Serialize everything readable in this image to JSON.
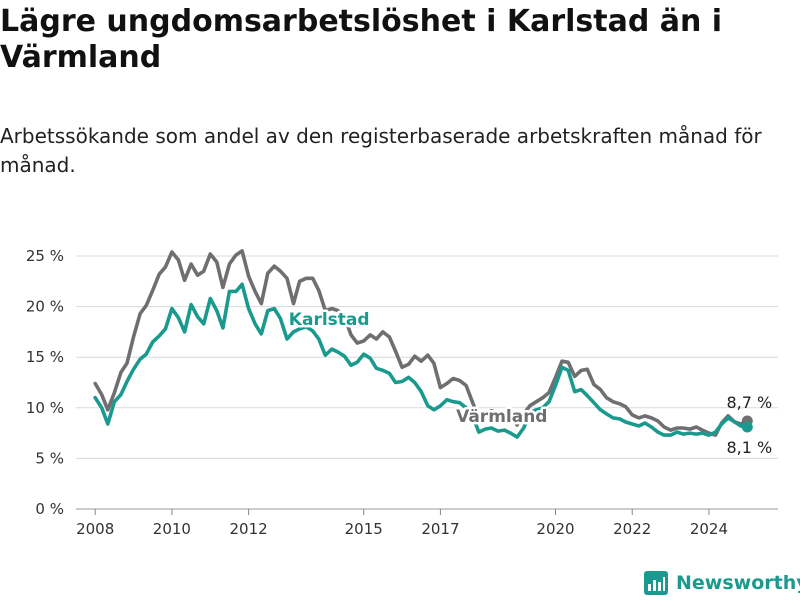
{
  "title": "Lägre ungdomsarbetslöshet i Karlstad än i Värmland",
  "subtitle": "Arbetssökande som andel av den registerbaserade arbetskraften månad för månad.",
  "brand": "Newsworthy",
  "colors": {
    "karlstad": "#1a9a8e",
    "varmland": "#6f6f72",
    "grid": "#d9d9d9"
  },
  "chart_data": {
    "type": "line",
    "ylim": [
      0,
      25
    ],
    "xlim": [
      2007.5,
      2025.8
    ],
    "yticks": [
      "0 %",
      "5 %",
      "10 %",
      "15 %",
      "20 %",
      "25 %"
    ],
    "xticks": [
      "2008",
      "2010",
      "2012",
      "2015",
      "2017",
      "2020",
      "2022",
      "2024"
    ],
    "grid": true,
    "series": [
      {
        "name": "Värmland",
        "end_label": "8,7 %",
        "points": [
          [
            2008.0,
            12.4
          ],
          [
            2008.17,
            11.3
          ],
          [
            2008.33,
            9.8
          ],
          [
            2008.5,
            11.5
          ],
          [
            2008.67,
            13.5
          ],
          [
            2008.83,
            14.4
          ],
          [
            2009.0,
            17.0
          ],
          [
            2009.17,
            19.3
          ],
          [
            2009.33,
            20.1
          ],
          [
            2009.5,
            21.6
          ],
          [
            2009.67,
            23.2
          ],
          [
            2009.83,
            23.9
          ],
          [
            2010.0,
            25.4
          ],
          [
            2010.17,
            24.6
          ],
          [
            2010.33,
            22.6
          ],
          [
            2010.5,
            24.2
          ],
          [
            2010.67,
            23.1
          ],
          [
            2010.83,
            23.5
          ],
          [
            2011.0,
            25.2
          ],
          [
            2011.17,
            24.4
          ],
          [
            2011.33,
            21.9
          ],
          [
            2011.5,
            24.2
          ],
          [
            2011.67,
            25.1
          ],
          [
            2011.83,
            25.5
          ],
          [
            2012.0,
            23.0
          ],
          [
            2012.17,
            21.5
          ],
          [
            2012.33,
            20.3
          ],
          [
            2012.5,
            23.3
          ],
          [
            2012.67,
            24.0
          ],
          [
            2012.83,
            23.5
          ],
          [
            2013.0,
            22.8
          ],
          [
            2013.17,
            20.3
          ],
          [
            2013.33,
            22.5
          ],
          [
            2013.5,
            22.8
          ],
          [
            2013.67,
            22.8
          ],
          [
            2013.83,
            21.6
          ],
          [
            2014.0,
            19.6
          ],
          [
            2014.17,
            19.8
          ],
          [
            2014.33,
            19.6
          ],
          [
            2014.5,
            19.0
          ],
          [
            2014.67,
            17.2
          ],
          [
            2014.83,
            16.4
          ],
          [
            2015.0,
            16.6
          ],
          [
            2015.17,
            17.2
          ],
          [
            2015.33,
            16.8
          ],
          [
            2015.5,
            17.5
          ],
          [
            2015.67,
            17.0
          ],
          [
            2015.83,
            15.6
          ],
          [
            2016.0,
            14.0
          ],
          [
            2016.17,
            14.3
          ],
          [
            2016.33,
            15.1
          ],
          [
            2016.5,
            14.6
          ],
          [
            2016.67,
            15.2
          ],
          [
            2016.83,
            14.4
          ],
          [
            2017.0,
            12.0
          ],
          [
            2017.17,
            12.4
          ],
          [
            2017.33,
            12.9
          ],
          [
            2017.5,
            12.7
          ],
          [
            2017.67,
            12.2
          ],
          [
            2017.83,
            10.6
          ],
          [
            2018.0,
            9.0
          ],
          [
            2018.17,
            9.4
          ],
          [
            2018.33,
            9.7
          ],
          [
            2018.5,
            9.4
          ],
          [
            2018.67,
            9.1
          ],
          [
            2018.83,
            9.3
          ],
          [
            2019.0,
            8.3
          ],
          [
            2019.17,
            9.4
          ],
          [
            2019.33,
            10.2
          ],
          [
            2019.5,
            10.6
          ],
          [
            2019.67,
            11.0
          ],
          [
            2019.83,
            11.5
          ],
          [
            2020.0,
            13.0
          ],
          [
            2020.17,
            14.6
          ],
          [
            2020.33,
            14.5
          ],
          [
            2020.5,
            13.1
          ],
          [
            2020.67,
            13.7
          ],
          [
            2020.83,
            13.8
          ],
          [
            2021.0,
            12.3
          ],
          [
            2021.17,
            11.8
          ],
          [
            2021.33,
            11.0
          ],
          [
            2021.5,
            10.6
          ],
          [
            2021.67,
            10.4
          ],
          [
            2021.83,
            10.1
          ],
          [
            2022.0,
            9.3
          ],
          [
            2022.17,
            9.0
          ],
          [
            2022.33,
            9.2
          ],
          [
            2022.5,
            9.0
          ],
          [
            2022.67,
            8.7
          ],
          [
            2022.83,
            8.1
          ],
          [
            2023.0,
            7.8
          ],
          [
            2023.17,
            8.0
          ],
          [
            2023.33,
            8.0
          ],
          [
            2023.5,
            7.9
          ],
          [
            2023.67,
            8.1
          ],
          [
            2023.83,
            7.8
          ],
          [
            2024.0,
            7.5
          ],
          [
            2024.17,
            7.3
          ],
          [
            2024.33,
            8.5
          ],
          [
            2024.5,
            9.2
          ],
          [
            2024.67,
            8.6
          ],
          [
            2024.83,
            8.4
          ],
          [
            2025.0,
            8.7
          ]
        ]
      },
      {
        "name": "Karlstad",
        "end_label": "8,1 %",
        "points": [
          [
            2008.0,
            11.0
          ],
          [
            2008.17,
            10.0
          ],
          [
            2008.33,
            8.4
          ],
          [
            2008.5,
            10.6
          ],
          [
            2008.67,
            11.3
          ],
          [
            2008.83,
            12.6
          ],
          [
            2009.0,
            13.8
          ],
          [
            2009.17,
            14.8
          ],
          [
            2009.33,
            15.3
          ],
          [
            2009.5,
            16.5
          ],
          [
            2009.67,
            17.1
          ],
          [
            2009.83,
            17.8
          ],
          [
            2010.0,
            19.8
          ],
          [
            2010.17,
            18.9
          ],
          [
            2010.33,
            17.5
          ],
          [
            2010.5,
            20.2
          ],
          [
            2010.67,
            19.0
          ],
          [
            2010.83,
            18.3
          ],
          [
            2011.0,
            20.8
          ],
          [
            2011.17,
            19.6
          ],
          [
            2011.33,
            17.9
          ],
          [
            2011.5,
            21.5
          ],
          [
            2011.67,
            21.5
          ],
          [
            2011.83,
            22.2
          ],
          [
            2012.0,
            19.8
          ],
          [
            2012.17,
            18.3
          ],
          [
            2012.33,
            17.3
          ],
          [
            2012.5,
            19.6
          ],
          [
            2012.67,
            19.8
          ],
          [
            2012.83,
            18.8
          ],
          [
            2013.0,
            16.8
          ],
          [
            2013.17,
            17.5
          ],
          [
            2013.33,
            17.8
          ],
          [
            2013.5,
            18.0
          ],
          [
            2013.67,
            17.6
          ],
          [
            2013.83,
            16.8
          ],
          [
            2014.0,
            15.2
          ],
          [
            2014.17,
            15.8
          ],
          [
            2014.33,
            15.5
          ],
          [
            2014.5,
            15.1
          ],
          [
            2014.67,
            14.2
          ],
          [
            2014.83,
            14.5
          ],
          [
            2015.0,
            15.3
          ],
          [
            2015.17,
            14.9
          ],
          [
            2015.33,
            13.9
          ],
          [
            2015.5,
            13.7
          ],
          [
            2015.67,
            13.4
          ],
          [
            2015.83,
            12.5
          ],
          [
            2016.0,
            12.6
          ],
          [
            2016.17,
            13.0
          ],
          [
            2016.33,
            12.5
          ],
          [
            2016.5,
            11.6
          ],
          [
            2016.67,
            10.2
          ],
          [
            2016.83,
            9.8
          ],
          [
            2017.0,
            10.2
          ],
          [
            2017.17,
            10.8
          ],
          [
            2017.33,
            10.6
          ],
          [
            2017.5,
            10.5
          ],
          [
            2017.67,
            10.0
          ],
          [
            2017.83,
            9.3
          ],
          [
            2018.0,
            7.6
          ],
          [
            2018.17,
            7.9
          ],
          [
            2018.33,
            8.0
          ],
          [
            2018.5,
            7.7
          ],
          [
            2018.67,
            7.8
          ],
          [
            2018.83,
            7.5
          ],
          [
            2019.0,
            7.1
          ],
          [
            2019.17,
            8.0
          ],
          [
            2019.33,
            9.5
          ],
          [
            2019.5,
            9.8
          ],
          [
            2019.67,
            10.0
          ],
          [
            2019.83,
            10.6
          ],
          [
            2020.0,
            12.2
          ],
          [
            2020.17,
            14.0
          ],
          [
            2020.33,
            13.7
          ],
          [
            2020.5,
            11.6
          ],
          [
            2020.67,
            11.8
          ],
          [
            2020.83,
            11.2
          ],
          [
            2021.0,
            10.5
          ],
          [
            2021.17,
            9.8
          ],
          [
            2021.33,
            9.4
          ],
          [
            2021.5,
            9.0
          ],
          [
            2021.67,
            8.9
          ],
          [
            2021.83,
            8.6
          ],
          [
            2022.0,
            8.4
          ],
          [
            2022.17,
            8.2
          ],
          [
            2022.33,
            8.5
          ],
          [
            2022.5,
            8.1
          ],
          [
            2022.67,
            7.6
          ],
          [
            2022.83,
            7.3
          ],
          [
            2023.0,
            7.3
          ],
          [
            2023.17,
            7.6
          ],
          [
            2023.33,
            7.4
          ],
          [
            2023.5,
            7.5
          ],
          [
            2023.67,
            7.4
          ],
          [
            2023.83,
            7.5
          ],
          [
            2024.0,
            7.3
          ],
          [
            2024.17,
            7.6
          ],
          [
            2024.33,
            8.4
          ],
          [
            2024.5,
            9.0
          ],
          [
            2024.67,
            8.6
          ],
          [
            2024.83,
            8.2
          ],
          [
            2025.0,
            8.1
          ]
        ]
      }
    ]
  }
}
